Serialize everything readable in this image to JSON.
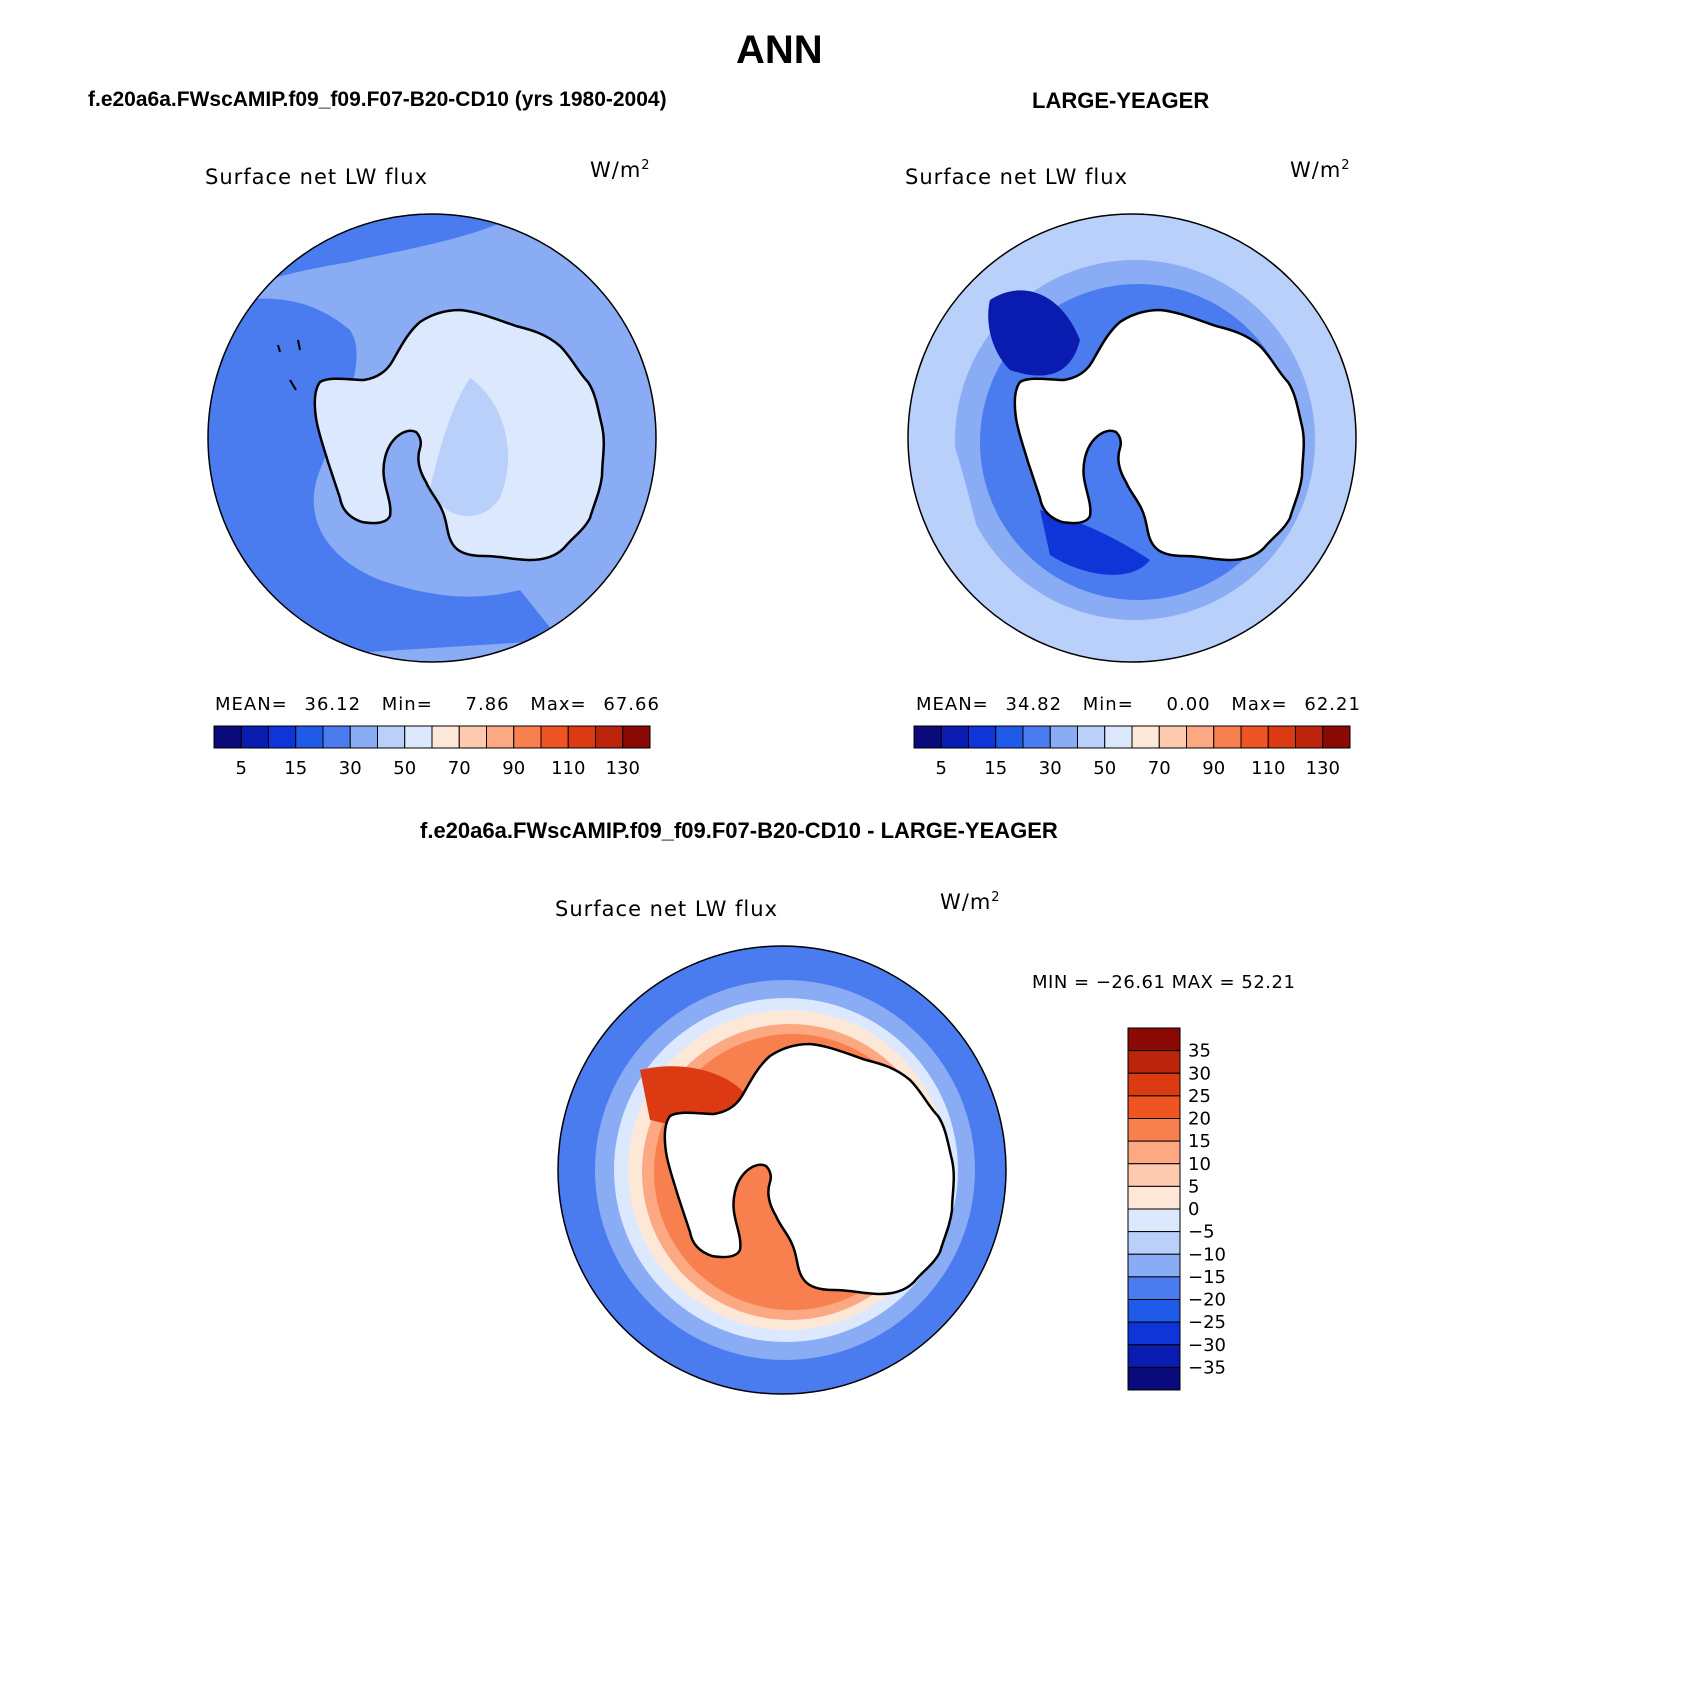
{
  "page": {
    "title": "ANN",
    "bottom_title": "f.e20a6a.FWscAMIP.f09_f09.F07-B20-CD10 - LARGE-YEAGER"
  },
  "panels": [
    {
      "case_title": "f.e20a6a.FWscAMIP.f09_f09.F07-B20-CD10 (yrs 1980-2004)",
      "field": "Surface net LW flux",
      "units_base": "W/m",
      "units_exp": "2",
      "stats": {
        "mean_label": "MEAN=",
        "mean": "36.12",
        "min_label": "Min=",
        "min": "7.86",
        "max_label": "Max=",
        "max": "67.66"
      }
    },
    {
      "case_title": "LARGE-YEAGER",
      "field": "Surface net LW flux",
      "units_base": "W/m",
      "units_exp": "2",
      "stats": {
        "mean_label": "MEAN=",
        "mean": "34.82",
        "min_label": "Min=",
        "min": "0.00",
        "max_label": "Max=",
        "max": "62.21"
      }
    },
    {
      "field": "Surface net LW flux",
      "units_base": "W/m",
      "units_exp": "2",
      "minmax": "MIN = −26.61  MAX =   52.21"
    }
  ],
  "abs_colorbar": {
    "colors": [
      "#0a0a7a",
      "#0a1bb0",
      "#0f35d8",
      "#1f5ae8",
      "#4a7cf0",
      "#8aacf5",
      "#b9d0fa",
      "#dce8fd",
      "#fde8d8",
      "#fdcab0",
      "#fca882",
      "#f8804f",
      "#ee5523",
      "#dc3a12",
      "#bd240c",
      "#8b0a06"
    ],
    "labels": [
      "5",
      "15",
      "30",
      "50",
      "70",
      "90",
      "110",
      "130"
    ]
  },
  "diff_colorbar": {
    "colors": [
      "#8b0a06",
      "#bd240c",
      "#dc3a12",
      "#ee5523",
      "#f8804f",
      "#fca882",
      "#fdcab0",
      "#fde8d8",
      "#dce8fd",
      "#b9d0fa",
      "#8aacf5",
      "#4a7cf0",
      "#1f5ae8",
      "#0f35d8",
      "#0a1bb0",
      "#0a0a7a"
    ],
    "labels": [
      "35",
      "30",
      "25",
      "20",
      "15",
      "10",
      "5",
      "0",
      "−5",
      "−10",
      "−15",
      "−20",
      "−25",
      "−30",
      "−35"
    ]
  },
  "colors": {
    "ocean_mid": "#8aacf5",
    "ocean_dark": "#4a7cf0",
    "ocean_darker": "#1f5ae8",
    "land_pale": "#dce8fd",
    "land_light": "#b9d0fa",
    "ice_white": "#ffffff",
    "warm_1": "#fde8d8",
    "warm_2": "#fca882",
    "warm_3": "#f8804f",
    "warm_4": "#dc3a12",
    "warm_5": "#8b0a06"
  }
}
